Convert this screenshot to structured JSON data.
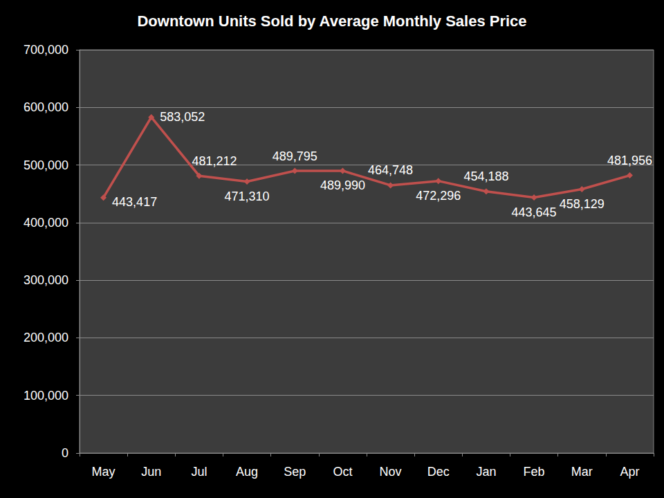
{
  "chart_data": {
    "type": "line",
    "title": "Downtown Units Sold by Average Monthly Sales Price",
    "categories": [
      "May",
      "Jun",
      "Jul",
      "Aug",
      "Sep",
      "Oct",
      "Nov",
      "Dec",
      "Jan",
      "Feb",
      "Mar",
      "Apr"
    ],
    "values": [
      443417,
      583052,
      481212,
      471310,
      489795,
      489990,
      464748,
      472296,
      454188,
      443645,
      458129,
      481956
    ],
    "value_labels": [
      "443,417",
      "583,052",
      "481,212",
      "471,310",
      "489,795",
      "489,990",
      "464,748",
      "472,296",
      "454,188",
      "443,645",
      "458,129",
      "481,956"
    ],
    "color": "#c0504d",
    "marker": "diamond",
    "line_style": "solid",
    "data_labels": true,
    "ylim": [
      0,
      700000
    ],
    "yticks": [
      0,
      {
        "value": 100000,
        "label": "100,000"
      },
      {
        "value": 200000,
        "label": "200,000"
      },
      {
        "value": 300000,
        "label": "300,000"
      },
      {
        "value": 400000,
        "label": "400,000"
      },
      {
        "value": 500000,
        "label": "500,000"
      },
      {
        "value": 600000,
        "label": "600,000"
      },
      {
        "value": 700000,
        "label": "700,000"
      }
    ],
    "grid": true
  }
}
